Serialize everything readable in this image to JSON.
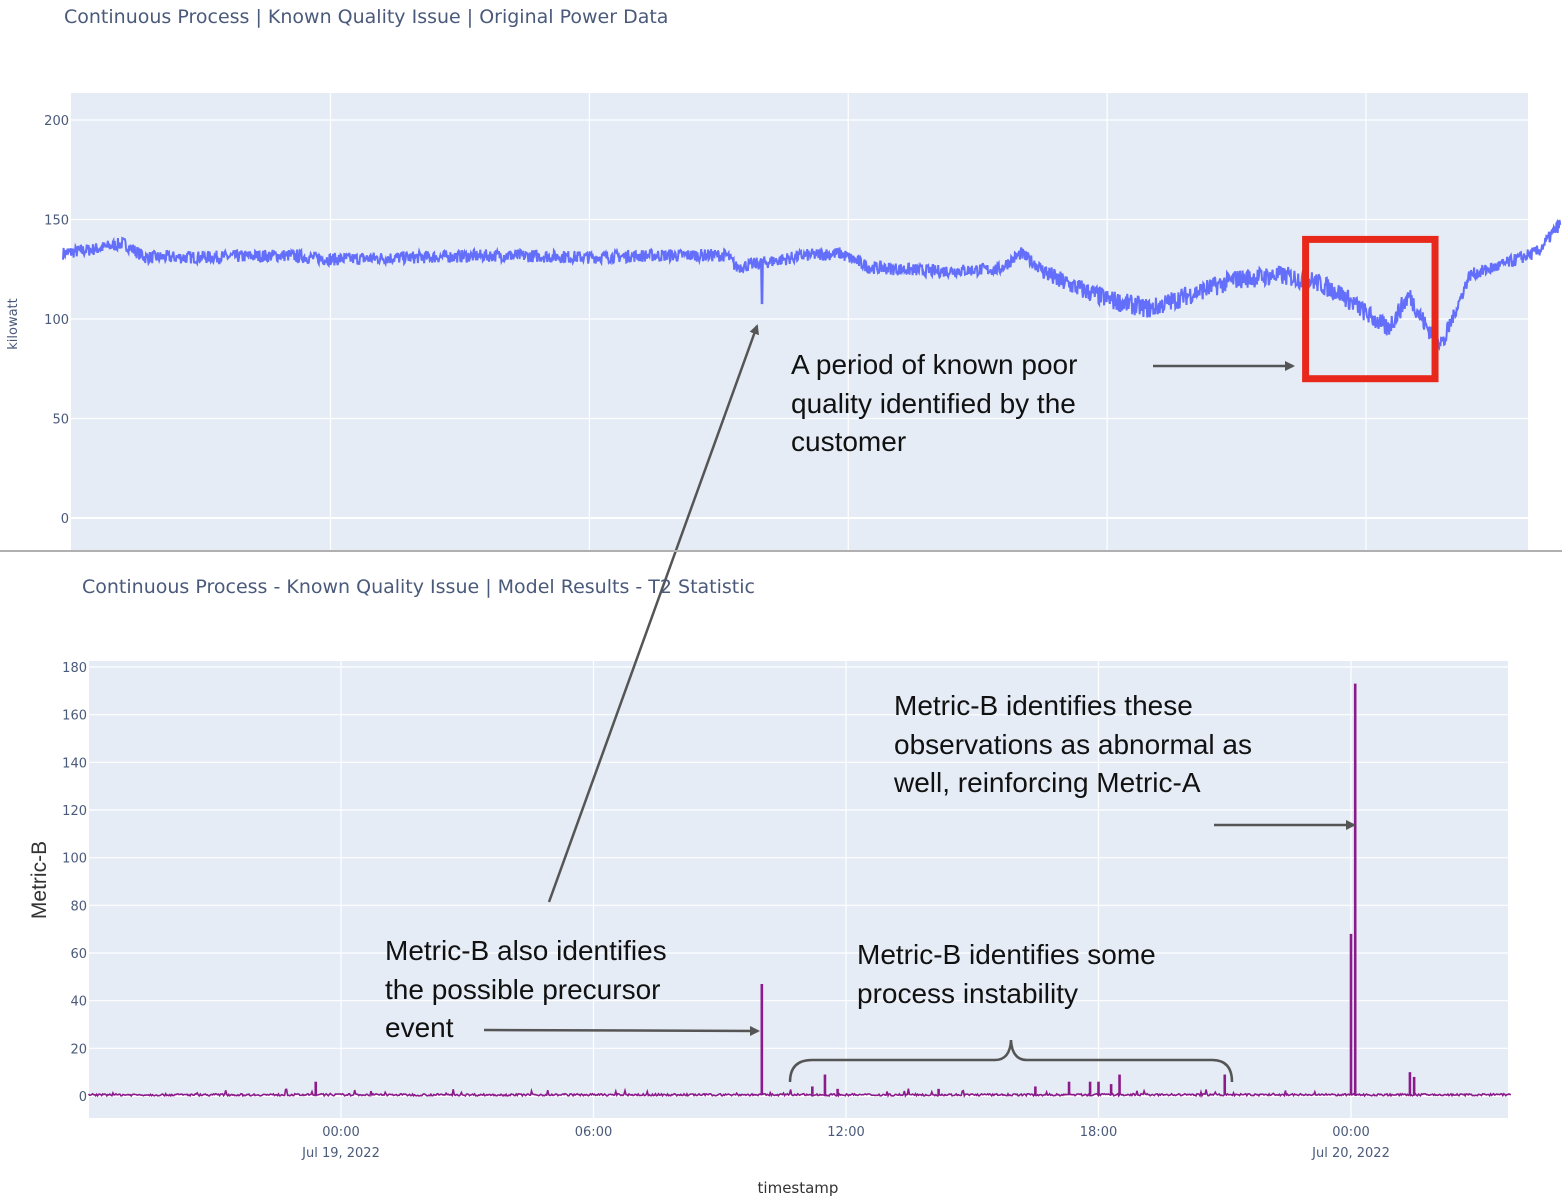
{
  "charts": {
    "top": {
      "title": "Continuous Process | Known Quality Issue | Original Power Data",
      "ylabel": "kilowatt",
      "yticks": [
        "0",
        "50",
        "100",
        "150",
        "200"
      ]
    },
    "bottom": {
      "title": "Continuous Process - Known Quality Issue | Model Results - T2 Statistic",
      "ylabel": "Metric-B",
      "xlabel": "timestamp",
      "yticks": [
        "0",
        "20",
        "40",
        "60",
        "80",
        "100",
        "120",
        "140",
        "160",
        "180"
      ],
      "xticks": [
        {
          "time": "00:00",
          "date": "Jul 19, 2022"
        },
        {
          "time": "06:00",
          "date": ""
        },
        {
          "time": "12:00",
          "date": ""
        },
        {
          "time": "18:00",
          "date": ""
        },
        {
          "time": "00:00",
          "date": "Jul 20, 2022"
        }
      ]
    }
  },
  "annotations": {
    "quality": [
      "A period of known poor",
      "quality identified by the",
      "customer"
    ],
    "abnormal": [
      "Metric-B identifies these",
      "observations as abnormal as",
      "well, reinforcing Metric-A"
    ],
    "precursor": [
      "Metric-B also identifies",
      "the possible precursor",
      "event"
    ],
    "instability": [
      "Metric-B identifies some",
      "process instability"
    ]
  },
  "chart_data": [
    {
      "type": "line",
      "title": "Continuous Process | Known Quality Issue | Original Power Data",
      "xlabel": "",
      "ylabel": "kilowatt",
      "ylim": [
        0,
        210
      ],
      "x_unit": "hours relative to 00:00 Jul 19, 2022",
      "xlim": [
        -6.2,
        28.5
      ],
      "grid": true,
      "color": "#636efa",
      "series": [
        {
          "x": [
            -6.2,
            -5.5,
            -4.8,
            -4.3,
            -3.0,
            -1.0,
            0.0,
            2.0,
            4.0,
            6.0,
            7.5,
            9.2,
            9.4,
            10.5,
            11.0,
            11.8,
            12.5,
            14.0,
            15.5,
            16.0,
            16.8,
            18.0,
            19.0,
            20.0,
            21.0,
            22.0,
            22.8,
            23.4,
            24.0,
            24.5,
            25.0,
            25.4,
            25.8,
            26.0,
            26.4,
            27.0,
            28.0,
            28.5
          ],
          "y": [
            133,
            135,
            138,
            131,
            131,
            132,
            130,
            131,
            132,
            131,
            132,
            132,
            126,
            130,
            132,
            133,
            126,
            124,
            125,
            133,
            120,
            110,
            105,
            113,
            120,
            122,
            119,
            113,
            103,
            95,
            112,
            96,
            88,
            100,
            122,
            126,
            134,
            148
          ]
        }
      ],
      "dips": [
        {
          "x": 10.0,
          "y": 108
        }
      ],
      "highlight_box": {
        "x0": 22.6,
        "x1": 25.6,
        "y0": 70,
        "y1": 140,
        "color": "#e8281b"
      }
    },
    {
      "type": "line",
      "title": "Continuous Process - Known Quality Issue | Model Results - T2 Statistic",
      "xlabel": "timestamp",
      "ylabel": "Metric-B",
      "ylim": [
        0,
        180
      ],
      "x_unit": "hours relative to 00:00 Jul 19, 2022",
      "xlim": [
        -6.0,
        27.8
      ],
      "grid": true,
      "color": "#8b1a8b",
      "baseline": 0.5,
      "spikes": [
        {
          "x": -0.6,
          "y": 6
        },
        {
          "x": 10.0,
          "y": 47
        },
        {
          "x": 11.5,
          "y": 9
        },
        {
          "x": 11.2,
          "y": 4
        },
        {
          "x": 11.8,
          "y": 3
        },
        {
          "x": 14.2,
          "y": 3
        },
        {
          "x": 16.5,
          "y": 4
        },
        {
          "x": 17.3,
          "y": 6
        },
        {
          "x": 17.8,
          "y": 6
        },
        {
          "x": 18.0,
          "y": 6
        },
        {
          "x": 18.3,
          "y": 5
        },
        {
          "x": 18.5,
          "y": 9
        },
        {
          "x": 21.0,
          "y": 9
        },
        {
          "x": 24.0,
          "y": 68
        },
        {
          "x": 24.1,
          "y": 173
        },
        {
          "x": 25.4,
          "y": 10
        },
        {
          "x": 25.5,
          "y": 8
        }
      ]
    }
  ]
}
